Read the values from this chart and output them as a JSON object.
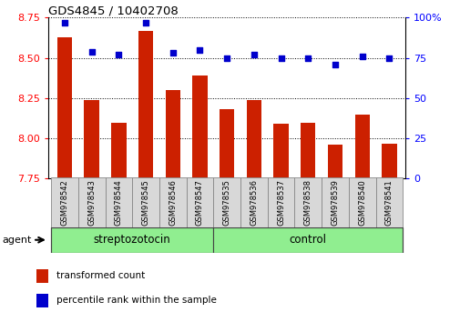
{
  "title": "GDS4845 / 10402708",
  "samples": [
    "GSM978542",
    "GSM978543",
    "GSM978544",
    "GSM978545",
    "GSM978546",
    "GSM978547",
    "GSM978535",
    "GSM978536",
    "GSM978537",
    "GSM978538",
    "GSM978539",
    "GSM978540",
    "GSM978541"
  ],
  "red_values": [
    8.63,
    8.24,
    8.1,
    8.67,
    8.3,
    8.39,
    8.18,
    8.24,
    8.09,
    8.1,
    7.96,
    8.15,
    7.97
  ],
  "blue_values": [
    97,
    79,
    77,
    97,
    78,
    80,
    75,
    77,
    75,
    75,
    71,
    76,
    75
  ],
  "ylim_left": [
    7.75,
    8.75
  ],
  "ylim_right": [
    0,
    100
  ],
  "yticks_left": [
    7.75,
    8.0,
    8.25,
    8.5,
    8.75
  ],
  "yticks_right": [
    0,
    25,
    50,
    75,
    100
  ],
  "bar_color": "#cc2000",
  "dot_color": "#0000cc",
  "group1_label": "streptozotocin",
  "group2_label": "control",
  "group1_indices": [
    0,
    1,
    2,
    3,
    4,
    5
  ],
  "group2_indices": [
    6,
    7,
    8,
    9,
    10,
    11,
    12
  ],
  "group_color": "#90ee90",
  "agent_label": "agent",
  "legend_red": "transformed count",
  "legend_blue": "percentile rank within the sample",
  "bar_bottom": 7.75,
  "grid_color": "#000000",
  "right_ytick_labels": [
    "0",
    "25",
    "50",
    "75",
    "100%"
  ]
}
